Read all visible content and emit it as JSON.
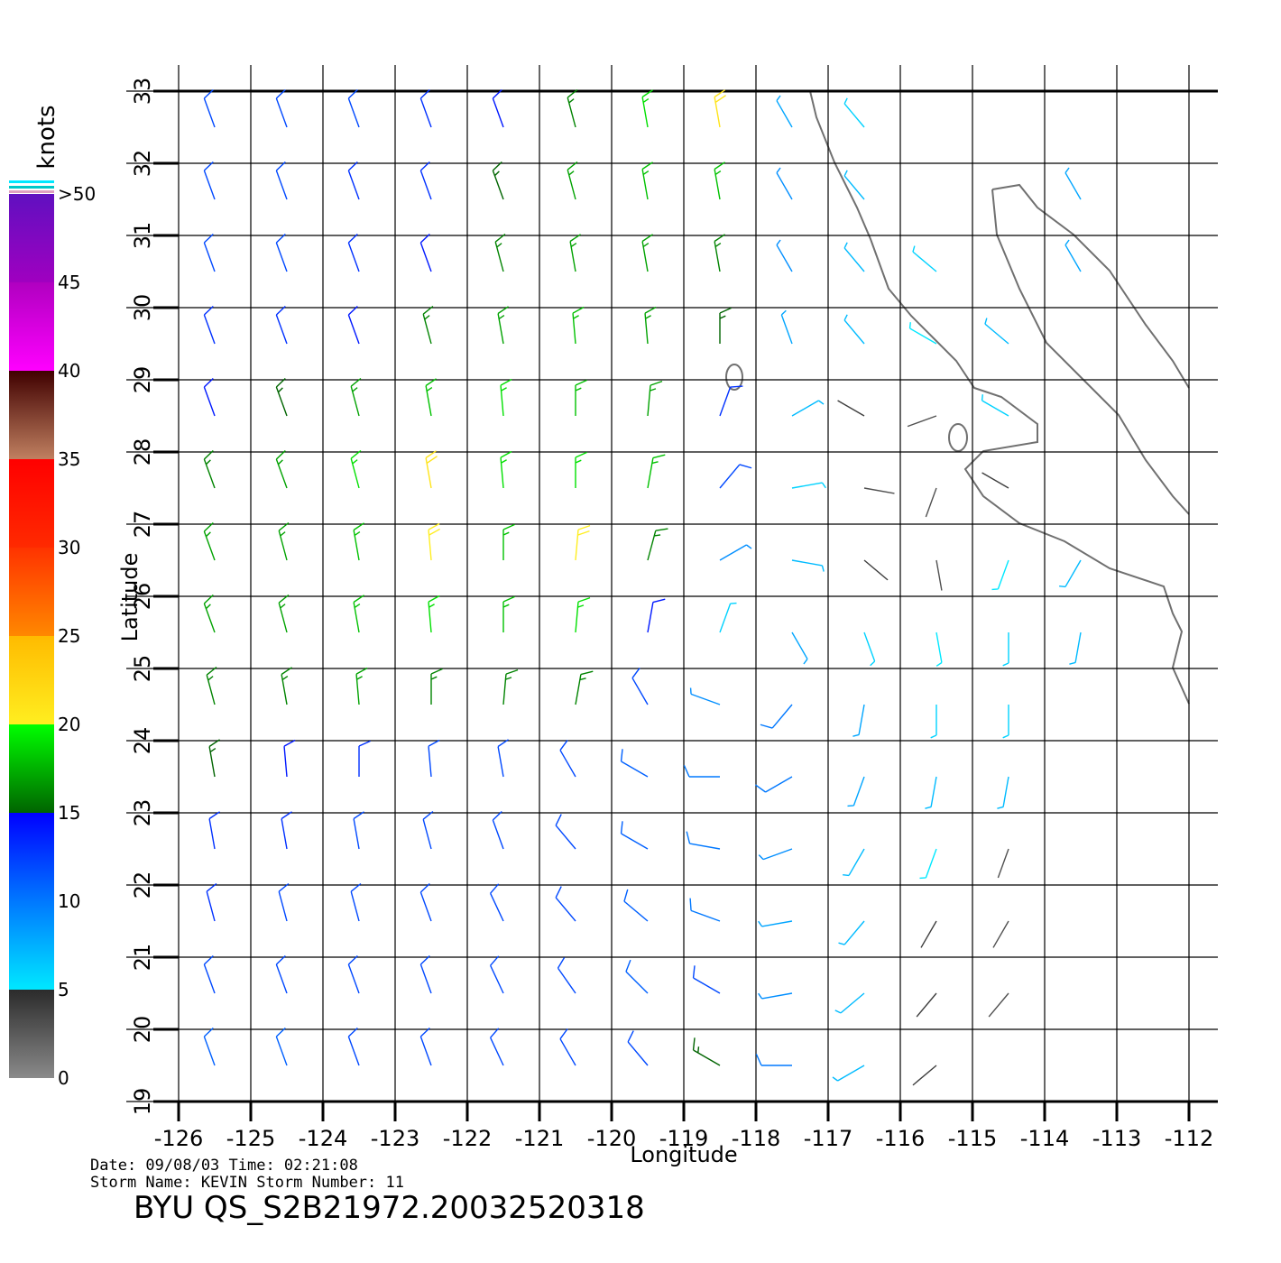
{
  "map": {
    "title": "BYU  QS_S2B21972.20032520318",
    "info_line_1": "Date:  09/08/03   Time:  02:21:08",
    "info_line_2": "Storm  Name:  KEVIN    Storm  Number:  11",
    "x_label": "Longitude",
    "y_label": "Latitude",
    "xlim": [
      -126,
      -112
    ],
    "ylim": [
      19,
      33
    ],
    "xticks": [
      -126,
      -125,
      -124,
      -123,
      -122,
      -121,
      -120,
      -119,
      -118,
      -117,
      -116,
      -115,
      -114,
      -113,
      -112
    ],
    "yticks": [
      19,
      20,
      21,
      22,
      23,
      24,
      25,
      26,
      27,
      28,
      29,
      30,
      31,
      32,
      33
    ],
    "colorbar": {
      "title": "knots",
      "ticks": [
        0,
        5,
        10,
        15,
        20,
        25,
        30,
        35,
        40,
        45,
        {
          "value": 50,
          "label": ">50"
        }
      ],
      "colors": [
        [
          "#8a8a8a",
          "#2b2b2b"
        ],
        [
          "#00e8ff",
          "#0078ff"
        ],
        [
          "#0078ff",
          "#0000ff"
        ],
        [
          "#006400",
          "#00ff00"
        ],
        [
          "#ffee20",
          "#ffbb00"
        ],
        [
          "#ff8800",
          "#ff3300"
        ],
        [
          "#ff2a00",
          "#ff0000"
        ],
        [
          "#c08060",
          "#400000"
        ],
        [
          "#ff00ff",
          "#b000c0"
        ],
        [
          "#a000c0",
          "#6010c0"
        ]
      ]
    },
    "wind": {
      "lon": [
        -125.5,
        -124.5,
        -123.5,
        -122.5,
        -121.5,
        -120.5,
        -119.5,
        -118.5,
        -117.5,
        -116.5,
        -115.5,
        -114.5,
        -113.5,
        -112.5
      ],
      "lat": [
        32.5,
        31.5,
        30.5,
        29.5,
        28.5,
        27.5,
        26.5,
        25.5,
        24.5,
        23.5,
        22.5,
        21.5,
        20.5,
        19.5
      ],
      "speed": [
        [
          12,
          12,
          12,
          13,
          14,
          16,
          19,
          21,
          8,
          6,
          null,
          null,
          null,
          null
        ],
        [
          12,
          12,
          13,
          13,
          15,
          17,
          18,
          18,
          9,
          7,
          null,
          null,
          8,
          null
        ],
        [
          12,
          12,
          13,
          14,
          16,
          17,
          17,
          16,
          9,
          7,
          6,
          null,
          8,
          null
        ],
        [
          13,
          13,
          14,
          16,
          17,
          18,
          17,
          15,
          8,
          7,
          5,
          7,
          null,
          null
        ],
        [
          14,
          15,
          17,
          18,
          19,
          18,
          17,
          13,
          7,
          4,
          3,
          6,
          null,
          null
        ],
        [
          16,
          17,
          19,
          21,
          19,
          19,
          18,
          12,
          6,
          3,
          3,
          4,
          null,
          null
        ],
        [
          17,
          17,
          18,
          20,
          18,
          20,
          16,
          9,
          7,
          4,
          3,
          5,
          7,
          null
        ],
        [
          17,
          17,
          18,
          19,
          18,
          19,
          14,
          6,
          8,
          6,
          5,
          6,
          7,
          null
        ],
        [
          16,
          16,
          17,
          16,
          16,
          16,
          12,
          9,
          10,
          8,
          6,
          6,
          null,
          null
        ],
        [
          15,
          14,
          13,
          12,
          12,
          12,
          11,
          10,
          10,
          8,
          7,
          7,
          null,
          null
        ],
        [
          13,
          13,
          12,
          12,
          12,
          12,
          11,
          10,
          9,
          7,
          5,
          3,
          null,
          null
        ],
        [
          13,
          12,
          12,
          12,
          12,
          12,
          11,
          10,
          8,
          7,
          4,
          3,
          null,
          null
        ],
        [
          12,
          12,
          12,
          12,
          12,
          12,
          11,
          12,
          9,
          7,
          4,
          3,
          null,
          null
        ],
        [
          11,
          11,
          12,
          12,
          12,
          12,
          12,
          15,
          10,
          7,
          4,
          null,
          null,
          null
        ]
      ],
      "direction": [
        [
          340,
          340,
          340,
          340,
          340,
          345,
          350,
          350,
          330,
          320,
          null,
          null,
          null,
          null
        ],
        [
          340,
          340,
          340,
          340,
          340,
          345,
          350,
          350,
          330,
          320,
          null,
          null,
          330,
          null
        ],
        [
          340,
          340,
          340,
          340,
          345,
          350,
          350,
          350,
          330,
          320,
          310,
          null,
          330,
          null
        ],
        [
          340,
          340,
          340,
          345,
          350,
          355,
          355,
          0,
          340,
          320,
          300,
          310,
          null,
          null
        ],
        [
          340,
          340,
          345,
          350,
          355,
          0,
          5,
          20,
          60,
          300,
          250,
          300,
          null,
          null
        ],
        [
          340,
          340,
          345,
          350,
          355,
          0,
          10,
          40,
          80,
          100,
          200,
          300,
          null,
          null
        ],
        [
          340,
          345,
          350,
          355,
          0,
          5,
          15,
          60,
          100,
          130,
          170,
          200,
          210,
          null
        ],
        [
          340,
          345,
          350,
          355,
          0,
          5,
          10,
          20,
          150,
          160,
          170,
          180,
          190,
          null
        ],
        [
          345,
          350,
          355,
          0,
          5,
          10,
          330,
          290,
          220,
          190,
          180,
          180,
          null,
          null
        ],
        [
          350,
          355,
          0,
          355,
          350,
          330,
          300,
          270,
          240,
          200,
          190,
          190,
          null,
          null
        ],
        [
          350,
          350,
          350,
          345,
          340,
          320,
          300,
          280,
          250,
          210,
          200,
          200,
          null,
          null
        ],
        [
          345,
          345,
          345,
          340,
          335,
          320,
          310,
          290,
          260,
          220,
          210,
          210,
          null,
          null
        ],
        [
          340,
          340,
          340,
          340,
          335,
          325,
          315,
          300,
          260,
          230,
          220,
          220,
          null,
          null
        ],
        [
          340,
          340,
          340,
          340,
          335,
          330,
          320,
          300,
          270,
          240,
          230,
          null,
          null,
          null
        ]
      ]
    }
  }
}
